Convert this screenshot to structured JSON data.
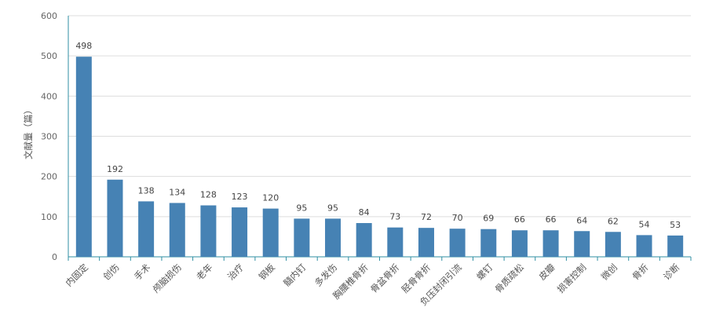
{
  "chart_data": {
    "type": "bar",
    "title": "",
    "xlabel": "",
    "ylabel": "文献量（篇）",
    "ylim": [
      0,
      600
    ],
    "yticks": [
      0,
      100,
      200,
      300,
      400,
      500,
      600
    ],
    "grid": true,
    "categories": [
      "内固定",
      "创伤",
      "手术",
      "颅脑损伤",
      "老年",
      "治疗",
      "钢板",
      "髓内钉",
      "多发伤",
      "胸腰椎骨折",
      "骨盆骨折",
      "胫骨骨折",
      "负压封闭引流",
      "螺钉",
      "骨质疏松",
      "皮瓣",
      "损害控制",
      "微创",
      "骨折",
      "诊断"
    ],
    "values": [
      498,
      192,
      138,
      134,
      128,
      123,
      120,
      95,
      95,
      84,
      73,
      72,
      70,
      69,
      66,
      66,
      64,
      62,
      54,
      53
    ],
    "bar_color": "#4682b4",
    "axis_color": "#2f8fa3",
    "grid_color": "#dddddd"
  }
}
